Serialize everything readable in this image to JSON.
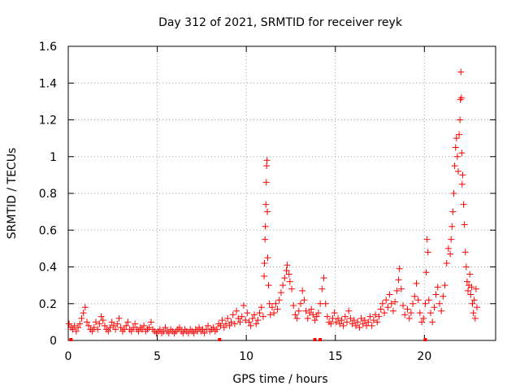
{
  "chart_data": {
    "type": "scatter",
    "title": "Day 312 of 2021, SRMTID for receiver reyk",
    "xlabel": "GPS time / hours",
    "ylabel": "SRMTID / TECUs",
    "xlim": [
      0,
      24
    ],
    "ylim": [
      0,
      1.6
    ],
    "x_ticks": [
      0,
      5,
      10,
      15,
      20
    ],
    "y_ticks": [
      0,
      0.2,
      0.4,
      0.6,
      0.8,
      1,
      1.2,
      1.4,
      1.6
    ],
    "x_tick_labels": [
      "0",
      "5",
      "10",
      "15",
      "20"
    ],
    "y_tick_labels": [
      "0",
      "0.2",
      "0.4",
      "0.6",
      "0.8",
      "1",
      "1.2",
      "1.4",
      "1.6"
    ],
    "grid": true,
    "marker": "+",
    "color": "#ff0000",
    "series": [
      {
        "name": "SRMTID",
        "points": [
          [
            0.05,
            0.09
          ],
          [
            0.15,
            0.07
          ],
          [
            0.25,
            0.06
          ],
          [
            0.35,
            0.08
          ],
          [
            0.45,
            0.05
          ],
          [
            0.55,
            0.07
          ],
          [
            0.65,
            0.09
          ],
          [
            0.75,
            0.12
          ],
          [
            0.85,
            0.15
          ],
          [
            0.95,
            0.18
          ],
          [
            1.05,
            0.1
          ],
          [
            1.15,
            0.08
          ],
          [
            1.25,
            0.06
          ],
          [
            1.35,
            0.05
          ],
          [
            1.45,
            0.07
          ],
          [
            1.55,
            0.1
          ],
          [
            1.65,
            0.06
          ],
          [
            1.75,
            0.09
          ],
          [
            1.85,
            0.13
          ],
          [
            1.95,
            0.11
          ],
          [
            2.05,
            0.08
          ],
          [
            2.15,
            0.06
          ],
          [
            2.25,
            0.05
          ],
          [
            2.35,
            0.07
          ],
          [
            2.45,
            0.1
          ],
          [
            2.55,
            0.08
          ],
          [
            2.65,
            0.06
          ],
          [
            2.75,
            0.09
          ],
          [
            2.85,
            0.12
          ],
          [
            2.95,
            0.07
          ],
          [
            3.05,
            0.05
          ],
          [
            3.15,
            0.06
          ],
          [
            3.25,
            0.08
          ],
          [
            3.35,
            0.1
          ],
          [
            3.45,
            0.06
          ],
          [
            3.55,
            0.05
          ],
          [
            3.65,
            0.07
          ],
          [
            3.75,
            0.09
          ],
          [
            3.85,
            0.06
          ],
          [
            3.95,
            0.05
          ],
          [
            4.05,
            0.07
          ],
          [
            4.15,
            0.06
          ],
          [
            4.25,
            0.08
          ],
          [
            4.35,
            0.05
          ],
          [
            4.45,
            0.06
          ],
          [
            4.55,
            0.07
          ],
          [
            4.65,
            0.1
          ],
          [
            4.75,
            0.06
          ],
          [
            4.85,
            0.05
          ],
          [
            4.95,
            0.04
          ],
          [
            5.05,
            0.05
          ],
          [
            5.15,
            0.06
          ],
          [
            5.25,
            0.04
          ],
          [
            5.35,
            0.05
          ],
          [
            5.45,
            0.07
          ],
          [
            5.55,
            0.05
          ],
          [
            5.65,
            0.04
          ],
          [
            5.75,
            0.06
          ],
          [
            5.85,
            0.05
          ],
          [
            5.95,
            0.04
          ],
          [
            6.05,
            0.05
          ],
          [
            6.15,
            0.06
          ],
          [
            6.25,
            0.07
          ],
          [
            6.35,
            0.05
          ],
          [
            6.45,
            0.04
          ],
          [
            6.55,
            0.06
          ],
          [
            6.65,
            0.05
          ],
          [
            6.75,
            0.04
          ],
          [
            6.85,
            0.06
          ],
          [
            6.95,
            0.05
          ],
          [
            7.05,
            0.04
          ],
          [
            7.15,
            0.06
          ],
          [
            7.25,
            0.05
          ],
          [
            7.35,
            0.07
          ],
          [
            7.45,
            0.05
          ],
          [
            7.55,
            0.06
          ],
          [
            7.65,
            0.04
          ],
          [
            7.75,
            0.06
          ],
          [
            7.85,
            0.08
          ],
          [
            7.95,
            0.05
          ],
          [
            8.05,
            0.06
          ],
          [
            8.15,
            0.07
          ],
          [
            8.25,
            0.05
          ],
          [
            8.35,
            0.06
          ],
          [
            8.45,
            0.09
          ],
          [
            8.55,
            0.08
          ],
          [
            8.65,
            0.11
          ],
          [
            8.75,
            0.07
          ],
          [
            8.85,
            0.09
          ],
          [
            8.95,
            0.12
          ],
          [
            9.05,
            0.08
          ],
          [
            9.15,
            0.1
          ],
          [
            9.25,
            0.14
          ],
          [
            9.35,
            0.09
          ],
          [
            9.45,
            0.16
          ],
          [
            9.55,
            0.12
          ],
          [
            9.65,
            0.1
          ],
          [
            9.75,
            0.13
          ],
          [
            9.85,
            0.19
          ],
          [
            9.95,
            0.11
          ],
          [
            10.05,
            0.15
          ],
          [
            10.15,
            0.1
          ],
          [
            10.25,
            0.08
          ],
          [
            10.35,
            0.12
          ],
          [
            10.45,
            0.14
          ],
          [
            10.55,
            0.09
          ],
          [
            10.65,
            0.11
          ],
          [
            10.75,
            0.15
          ],
          [
            10.85,
            0.18
          ],
          [
            10.95,
            0.13
          ],
          [
            11.0,
            0.35
          ],
          [
            11.02,
            0.42
          ],
          [
            11.05,
            0.55
          ],
          [
            11.07,
            0.62
          ],
          [
            11.1,
            0.74
          ],
          [
            11.12,
            0.86
          ],
          [
            11.14,
            0.95
          ],
          [
            11.16,
            0.98
          ],
          [
            11.18,
            0.7
          ],
          [
            11.2,
            0.45
          ],
          [
            11.25,
            0.3
          ],
          [
            11.3,
            0.2
          ],
          [
            11.35,
            0.14
          ],
          [
            11.45,
            0.18
          ],
          [
            11.55,
            0.15
          ],
          [
            11.65,
            0.2
          ],
          [
            11.75,
            0.17
          ],
          [
            11.85,
            0.22
          ],
          [
            11.95,
            0.26
          ],
          [
            12.05,
            0.3
          ],
          [
            12.15,
            0.34
          ],
          [
            12.25,
            0.38
          ],
          [
            12.3,
            0.41
          ],
          [
            12.4,
            0.36
          ],
          [
            12.45,
            0.32
          ],
          [
            12.55,
            0.28
          ],
          [
            12.65,
            0.19
          ],
          [
            12.75,
            0.14
          ],
          [
            12.85,
            0.12
          ],
          [
            12.95,
            0.16
          ],
          [
            13.05,
            0.2
          ],
          [
            13.15,
            0.27
          ],
          [
            13.25,
            0.22
          ],
          [
            13.35,
            0.16
          ],
          [
            13.45,
            0.12
          ],
          [
            13.55,
            0.15
          ],
          [
            13.65,
            0.17
          ],
          [
            13.75,
            0.14
          ],
          [
            13.85,
            0.11
          ],
          [
            13.95,
            0.13
          ],
          [
            14.05,
            0.15
          ],
          [
            14.15,
            0.2
          ],
          [
            14.25,
            0.28
          ],
          [
            14.35,
            0.34
          ],
          [
            14.45,
            0.2
          ],
          [
            14.55,
            0.13
          ],
          [
            14.65,
            0.1
          ],
          [
            14.75,
            0.09
          ],
          [
            14.85,
            0.12
          ],
          [
            14.95,
            0.15
          ],
          [
            15.05,
            0.1
          ],
          [
            15.15,
            0.12
          ],
          [
            15.25,
            0.09
          ],
          [
            15.35,
            0.11
          ],
          [
            15.45,
            0.08
          ],
          [
            15.55,
            0.13
          ],
          [
            15.65,
            0.1
          ],
          [
            15.75,
            0.16
          ],
          [
            15.85,
            0.12
          ],
          [
            15.95,
            0.09
          ],
          [
            16.05,
            0.11
          ],
          [
            16.15,
            0.08
          ],
          [
            16.25,
            0.1
          ],
          [
            16.35,
            0.07
          ],
          [
            16.45,
            0.12
          ],
          [
            16.55,
            0.09
          ],
          [
            16.65,
            0.11
          ],
          [
            16.75,
            0.08
          ],
          [
            16.85,
            0.1
          ],
          [
            16.95,
            0.13
          ],
          [
            17.05,
            0.08
          ],
          [
            17.15,
            0.11
          ],
          [
            17.25,
            0.14
          ],
          [
            17.35,
            0.1
          ],
          [
            17.45,
            0.13
          ],
          [
            17.55,
            0.17
          ],
          [
            17.65,
            0.2
          ],
          [
            17.75,
            0.15
          ],
          [
            17.85,
            0.22
          ],
          [
            17.95,
            0.18
          ],
          [
            18.05,
            0.25
          ],
          [
            18.15,
            0.2
          ],
          [
            18.25,
            0.16
          ],
          [
            18.35,
            0.21
          ],
          [
            18.45,
            0.27
          ],
          [
            18.55,
            0.33
          ],
          [
            18.6,
            0.39
          ],
          [
            18.7,
            0.28
          ],
          [
            18.8,
            0.19
          ],
          [
            18.9,
            0.14
          ],
          [
            19.05,
            0.17
          ],
          [
            19.15,
            0.12
          ],
          [
            19.25,
            0.15
          ],
          [
            19.35,
            0.2
          ],
          [
            19.45,
            0.24
          ],
          [
            19.55,
            0.31
          ],
          [
            19.65,
            0.22
          ],
          [
            19.75,
            0.15
          ],
          [
            19.85,
            0.1
          ],
          [
            19.95,
            0.12
          ],
          [
            20.05,
            0.2
          ],
          [
            20.1,
            0.37
          ],
          [
            20.15,
            0.55
          ],
          [
            20.2,
            0.48
          ],
          [
            20.25,
            0.22
          ],
          [
            20.35,
            0.15
          ],
          [
            20.45,
            0.1
          ],
          [
            20.55,
            0.18
          ],
          [
            20.65,
            0.25
          ],
          [
            20.75,
            0.29
          ],
          [
            20.85,
            0.2
          ],
          [
            20.95,
            0.16
          ],
          [
            21.05,
            0.24
          ],
          [
            21.15,
            0.3
          ],
          [
            21.25,
            0.42
          ],
          [
            21.35,
            0.5
          ],
          [
            21.45,
            0.47
          ],
          [
            21.5,
            0.55
          ],
          [
            21.55,
            0.62
          ],
          [
            21.6,
            0.7
          ],
          [
            21.65,
            0.8
          ],
          [
            21.7,
            0.95
          ],
          [
            21.75,
            1.05
          ],
          [
            21.8,
            1.1
          ],
          [
            21.85,
            1.0
          ],
          [
            21.9,
            0.92
          ],
          [
            21.95,
            1.12
          ],
          [
            22.0,
            1.2
          ],
          [
            22.02,
            1.31
          ],
          [
            22.05,
            1.46
          ],
          [
            22.08,
            1.32
          ],
          [
            22.1,
            1.02
          ],
          [
            22.12,
            0.85
          ],
          [
            22.15,
            0.9
          ],
          [
            22.2,
            0.74
          ],
          [
            22.25,
            0.63
          ],
          [
            22.3,
            0.48
          ],
          [
            22.35,
            0.4
          ],
          [
            22.4,
            0.32
          ],
          [
            22.45,
            0.27
          ],
          [
            22.5,
            0.3
          ],
          [
            22.55,
            0.36
          ],
          [
            22.6,
            0.25
          ],
          [
            22.65,
            0.29
          ],
          [
            22.7,
            0.2
          ],
          [
            22.75,
            0.15
          ],
          [
            22.8,
            0.22
          ],
          [
            22.85,
            0.12
          ],
          [
            22.9,
            0.28
          ],
          [
            22.95,
            0.18
          ]
        ]
      }
    ],
    "bottom_markers_x": [
      0.15,
      8.5,
      13.85,
      14.15,
      20.05
    ]
  }
}
